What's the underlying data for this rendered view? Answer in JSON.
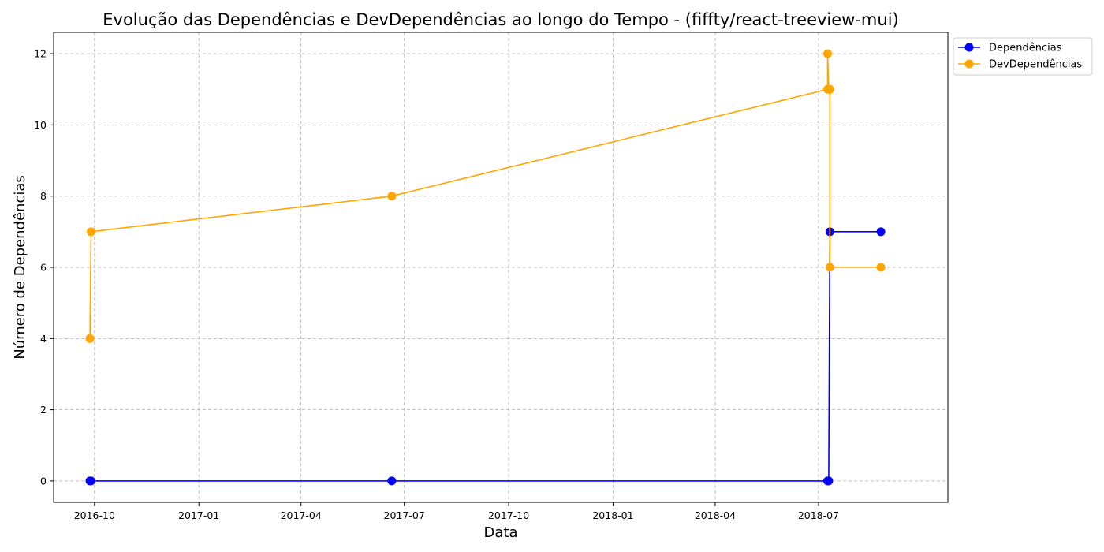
{
  "chart_data": {
    "type": "line",
    "title": "Evolução das Dependências e DevDependências ao longo do Tempo - (fiffty/react-treeview-mui)",
    "xlabel": "Data",
    "ylabel": "Número de Dependências",
    "x_ticks": [
      "2016-10",
      "2017-01",
      "2017-04",
      "2017-07",
      "2017-10",
      "2018-01",
      "2018-04",
      "2018-07"
    ],
    "y_ticks": [
      "0",
      "2",
      "4",
      "6",
      "8",
      "10",
      "12"
    ],
    "xlim": [
      "2016-08-26",
      "2018-10-23"
    ],
    "ylim": [
      -0.6,
      12.6
    ],
    "grid": true,
    "legend_position": "top-right-outside",
    "series": [
      {
        "name": "Dependências",
        "color": "#0000ff",
        "points": [
          {
            "x": "2016-09-27",
            "y": 0
          },
          {
            "x": "2016-09-28",
            "y": 0
          },
          {
            "x": "2017-06-20",
            "y": 0
          },
          {
            "x": "2018-07-09",
            "y": 0
          },
          {
            "x": "2018-07-10",
            "y": 0
          },
          {
            "x": "2018-07-11",
            "y": 7
          },
          {
            "x": "2018-08-25",
            "y": 7
          }
        ]
      },
      {
        "name": "DevDependências",
        "color": "#ffa500",
        "points": [
          {
            "x": "2016-09-27",
            "y": 4
          },
          {
            "x": "2016-09-28",
            "y": 7
          },
          {
            "x": "2017-06-20",
            "y": 8
          },
          {
            "x": "2018-07-09",
            "y": 11
          },
          {
            "x": "2018-07-09",
            "y": 12
          },
          {
            "x": "2018-07-10",
            "y": 11
          },
          {
            "x": "2018-07-11",
            "y": 11
          },
          {
            "x": "2018-07-11",
            "y": 6
          },
          {
            "x": "2018-08-25",
            "y": 6
          }
        ]
      }
    ]
  }
}
